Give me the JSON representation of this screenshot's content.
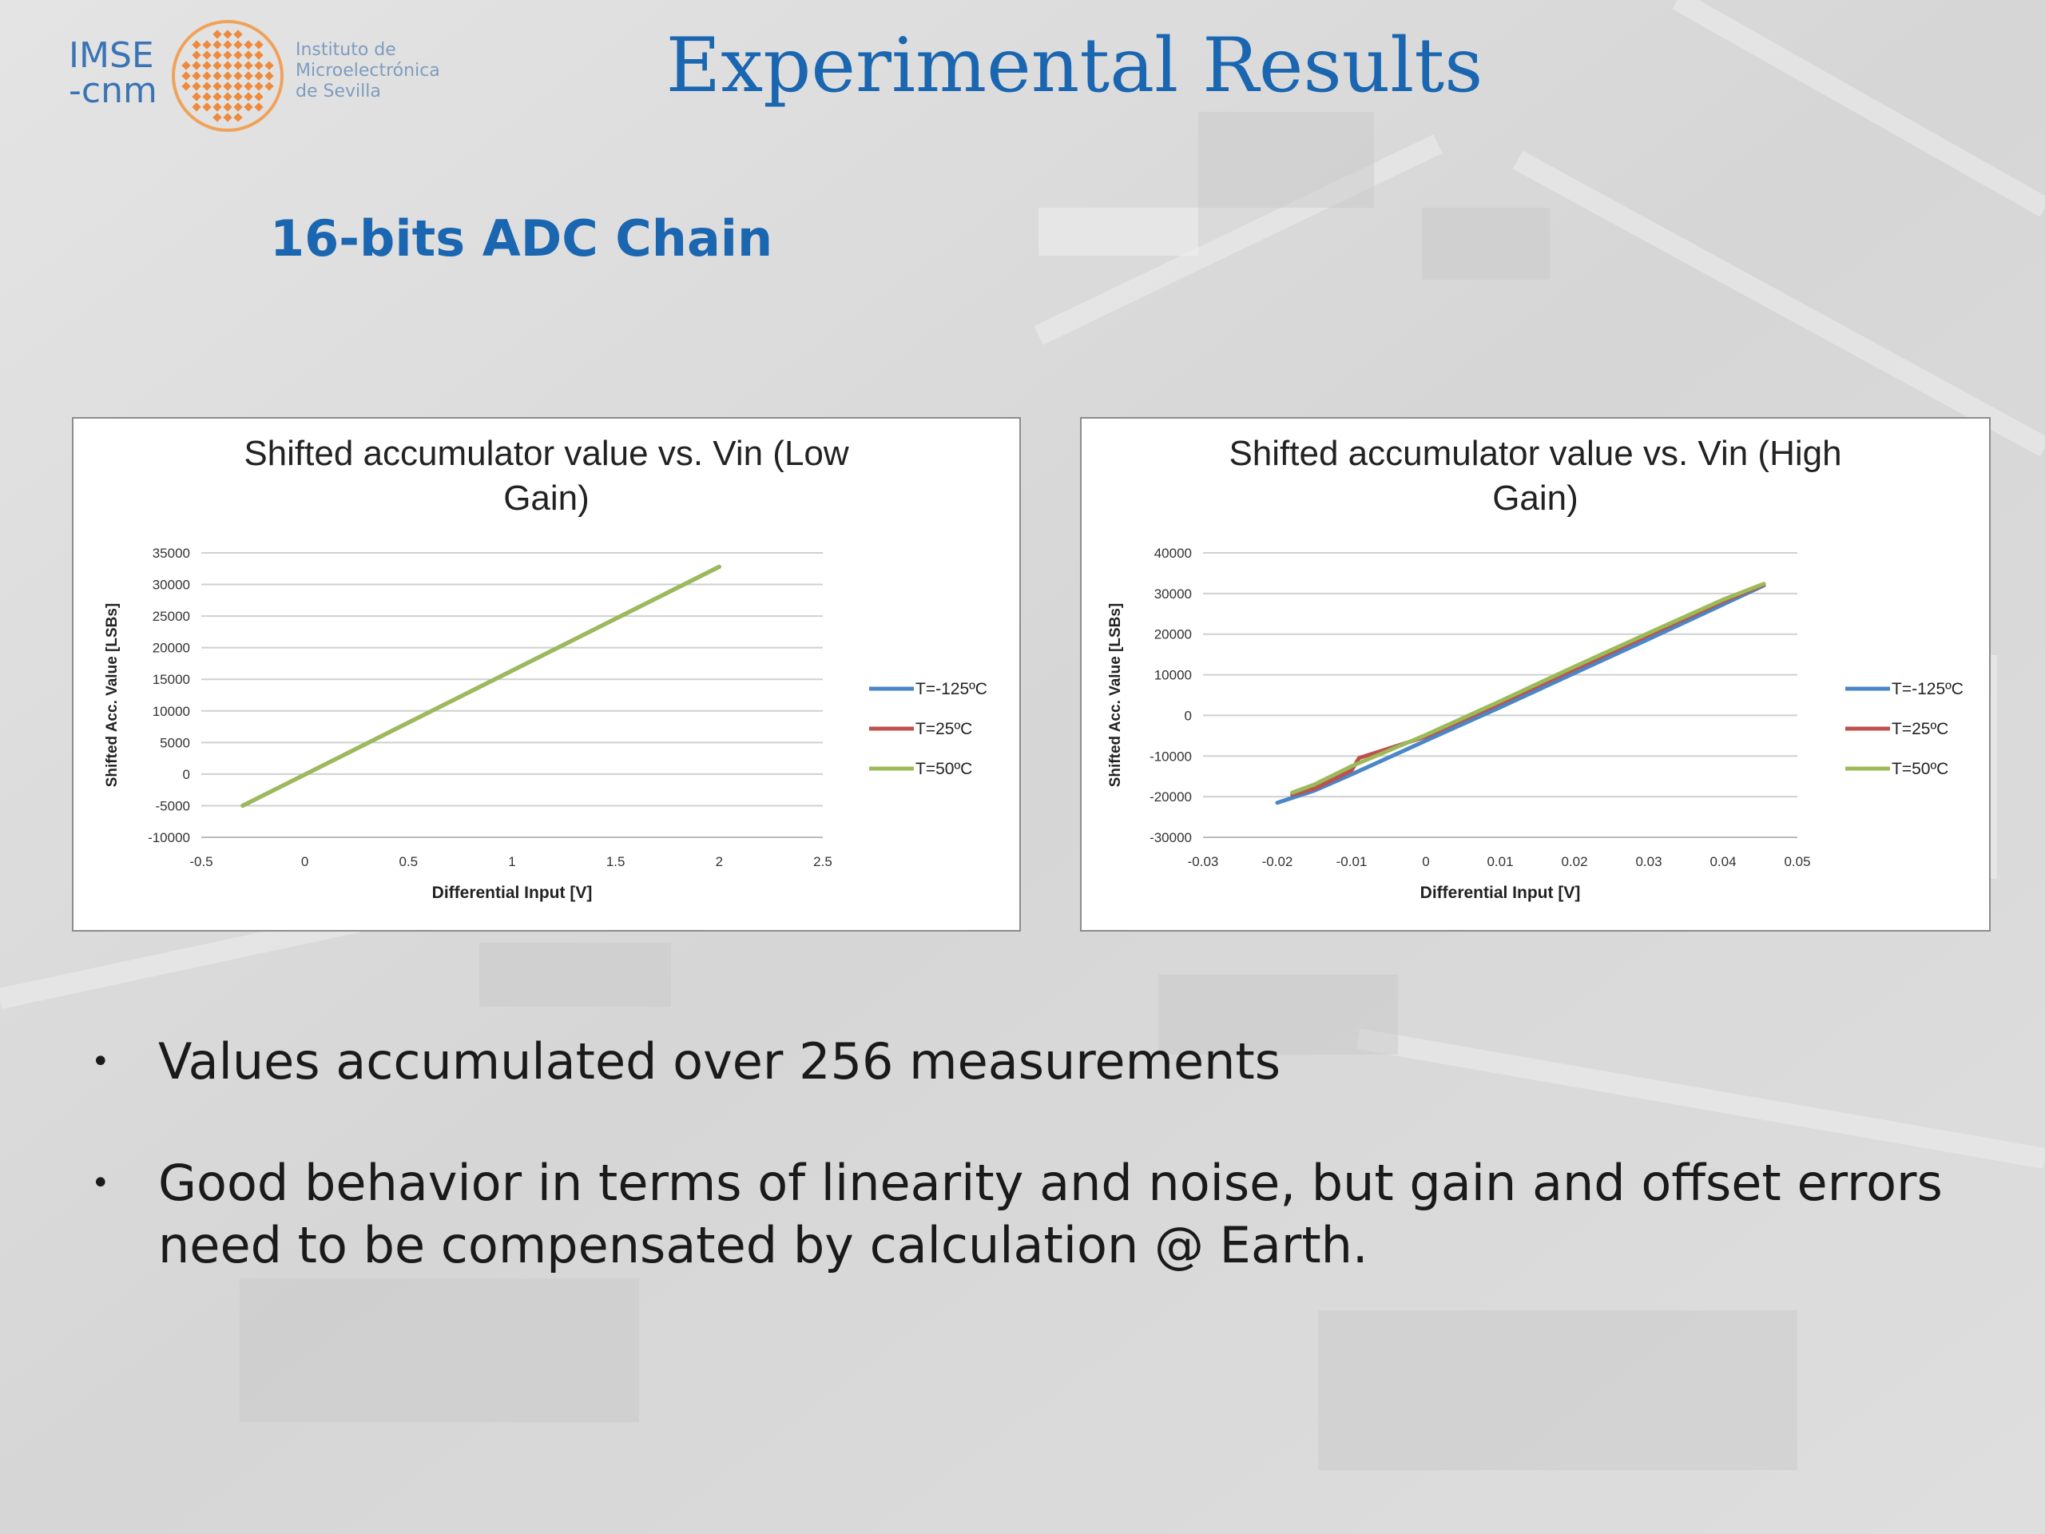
{
  "logo": {
    "abbr_line1": "IMSE",
    "abbr_line2": "-cnm",
    "name_line1": "Instituto de",
    "name_line2": "Microelectrónica",
    "name_line3": "de Sevilla"
  },
  "slide": {
    "title": "Experimental Results",
    "subtitle": "16-bits ADC Chain",
    "bullets": [
      "Values accumulated over 256 measurements",
      "Good behavior in terms of linearity and noise, but gain and offset errors need to be compensated by calculation @ Earth."
    ]
  },
  "colors": {
    "title": "#1a66b0",
    "series_blue": "#4a86c8",
    "series_red": "#c0504d",
    "series_green": "#9bbb59"
  },
  "chart_data": [
    {
      "type": "line",
      "title": "Shifted accumulator value vs. Vin (Low Gain)",
      "xlabel": "Differential Input [V]",
      "ylabel": "Shifted Acc. Value [LSBs]",
      "xlim": [
        -0.5,
        2.5
      ],
      "ylim": [
        -10000,
        35000
      ],
      "x_ticks": [
        "-0.5",
        "0",
        "0.5",
        "1",
        "1.5",
        "2",
        "2.5"
      ],
      "y_ticks": [
        "-10000",
        "-5000",
        "0",
        "5000",
        "10000",
        "15000",
        "20000",
        "25000",
        "30000",
        "35000"
      ],
      "grid": true,
      "legend": "right",
      "series": [
        {
          "name": "T=-125ºC",
          "color": "#4a86c8",
          "x": [
            -0.3,
            2.0
          ],
          "y": [
            -5000,
            32800
          ]
        },
        {
          "name": "T=25ºC",
          "color": "#c0504d",
          "x": [
            -0.3,
            2.0
          ],
          "y": [
            -5000,
            32800
          ]
        },
        {
          "name": "T=50ºC",
          "color": "#9bbb59",
          "x": [
            -0.3,
            2.0
          ],
          "y": [
            -5000,
            32800
          ]
        }
      ]
    },
    {
      "type": "line",
      "title": "Shifted accumulator value vs. Vin (High Gain)",
      "xlabel": "Differential Input [V]",
      "ylabel": "Shifted Acc. Value [LSBs]",
      "xlim": [
        -0.03,
        0.05
      ],
      "ylim": [
        -30000,
        40000
      ],
      "x_ticks": [
        "-0.03",
        "-0.02",
        "-0.01",
        "0",
        "0.01",
        "0.02",
        "0.03",
        "0.04",
        "0.05"
      ],
      "y_ticks": [
        "-30000",
        "-20000",
        "-10000",
        "0",
        "10000",
        "20000",
        "30000",
        "40000"
      ],
      "grid": true,
      "legend": "right",
      "series": [
        {
          "name": "T=-125ºC",
          "color": "#4a86c8",
          "x": [
            -0.02,
            -0.015,
            -0.01,
            0,
            0.01,
            0.02,
            0.03,
            0.04,
            0.0455
          ],
          "y": [
            -21500,
            -18500,
            -14500,
            -6200,
            2000,
            10400,
            18800,
            27300,
            32000
          ]
        },
        {
          "name": "T=25ºC",
          "color": "#c0504d",
          "x": [
            -0.018,
            -0.015,
            -0.01,
            -0.009,
            0,
            0.01,
            0.02,
            0.03,
            0.04,
            0.0455
          ],
          "y": [
            -19500,
            -18000,
            -13500,
            -10500,
            -5200,
            3000,
            11400,
            19800,
            28100,
            32200
          ]
        },
        {
          "name": "T=50ºC",
          "color": "#9bbb59",
          "x": [
            -0.018,
            -0.015,
            -0.01,
            0,
            0.01,
            0.02,
            0.03,
            0.04,
            0.0455
          ],
          "y": [
            -19000,
            -17000,
            -12500,
            -4800,
            3500,
            12000,
            20300,
            28500,
            32400
          ]
        }
      ]
    }
  ]
}
